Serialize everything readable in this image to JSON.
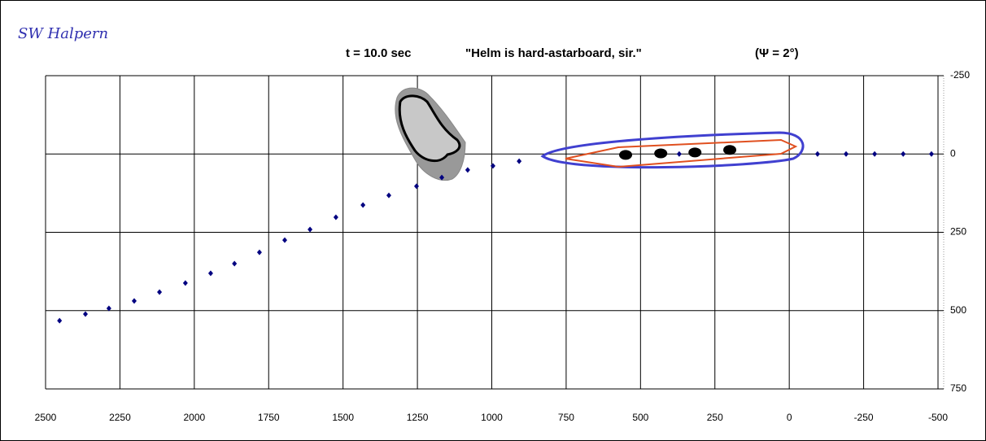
{
  "chart_data": {
    "type": "scatter",
    "annotations": [
      "SW Halpern",
      "t = 10.0 sec",
      "\"Helm is hard-astarboard, sir.\"",
      "(Ψ = 2°)"
    ],
    "xlim": [
      2500,
      -500
    ],
    "xticks": [
      2500,
      2250,
      2000,
      1750,
      1500,
      1250,
      1000,
      750,
      500,
      250,
      0,
      -250,
      -500
    ],
    "ylim": [
      -250,
      750
    ],
    "yticks": [
      -250,
      0,
      250,
      500,
      750
    ],
    "grid": true,
    "series": [
      {
        "color": "#000080",
        "x": [
          2453,
          2366,
          2287,
          2202,
          2117,
          2030,
          1945,
          1865,
          1781,
          1696,
          1611,
          1524,
          1433,
          1346,
          1253,
          1168,
          1081,
          996,
          908,
          370,
          -95,
          -191,
          -287,
          -383,
          -478
        ],
        "values": [
          532,
          511,
          493,
          469,
          441,
          412,
          381,
          350,
          314,
          275,
          241,
          202,
          163,
          132,
          103,
          75,
          51,
          38,
          23,
          0,
          0,
          0,
          0,
          0,
          0
        ]
      },
      {
        "color": "#000000",
        "x": [
          550,
          432,
          317,
          200
        ],
        "values": [
          3,
          -2,
          -5,
          -13
        ]
      }
    ]
  }
}
